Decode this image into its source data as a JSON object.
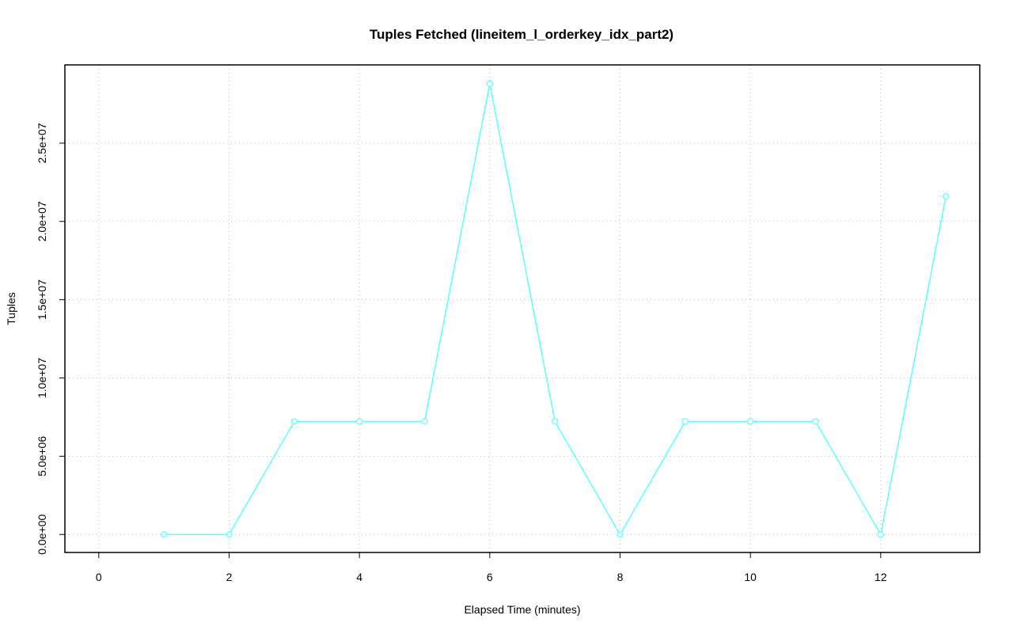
{
  "chart_data": {
    "type": "line",
    "title": "Tuples Fetched (lineitem_l_orderkey_idx_part2)",
    "x_label": "Elapsed Time (minutes)",
    "y_label": "Tuples",
    "x": [
      1,
      2,
      3,
      4,
      5,
      6,
      7,
      8,
      9,
      10,
      11,
      12,
      13
    ],
    "series": [
      {
        "color": "#5cffff",
        "values": [
          0,
          0,
          7220000,
          7220000,
          7220000,
          28800000,
          7220000,
          0,
          7220000,
          7220000,
          7220000,
          0,
          21600000
        ]
      }
    ],
    "xlim": [
      -0.52,
      13.52
    ],
    "xticks": [
      0,
      2,
      4,
      6,
      8,
      10,
      12
    ],
    "ylim": [
      -1150000,
      30000000
    ],
    "yticks": [
      {
        "value": 0,
        "label": "0.0e+00"
      },
      {
        "value": 5000000,
        "label": "5.0e+06"
      },
      {
        "value": 10000000,
        "label": "1.0e+07"
      },
      {
        "value": 15000000,
        "label": "1.5e+07"
      },
      {
        "value": 20000000,
        "label": "2.0e+07"
      },
      {
        "value": 25000000,
        "label": "2.5e+07"
      }
    ],
    "grid": true
  }
}
